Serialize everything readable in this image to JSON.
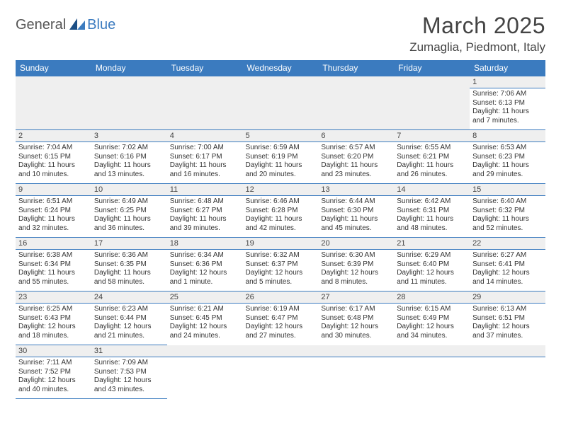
{
  "logo": {
    "part1": "General",
    "part2": "Blue"
  },
  "title": "March 2025",
  "location": "Zumaglia, Piedmont, Italy",
  "colors": {
    "header_bg": "#3b7bbf",
    "header_text": "#ffffff",
    "grid_line": "#3b7bbf",
    "shade": "#efefef",
    "text": "#333333"
  },
  "days_of_week": [
    "Sunday",
    "Monday",
    "Tuesday",
    "Wednesday",
    "Thursday",
    "Friday",
    "Saturday"
  ],
  "weeks": [
    [
      null,
      null,
      null,
      null,
      null,
      null,
      {
        "n": "1",
        "sr": "Sunrise: 7:06 AM",
        "ss": "Sunset: 6:13 PM",
        "dl": "Daylight: 11 hours and 7 minutes."
      }
    ],
    [
      {
        "n": "2",
        "sr": "Sunrise: 7:04 AM",
        "ss": "Sunset: 6:15 PM",
        "dl": "Daylight: 11 hours and 10 minutes."
      },
      {
        "n": "3",
        "sr": "Sunrise: 7:02 AM",
        "ss": "Sunset: 6:16 PM",
        "dl": "Daylight: 11 hours and 13 minutes."
      },
      {
        "n": "4",
        "sr": "Sunrise: 7:00 AM",
        "ss": "Sunset: 6:17 PM",
        "dl": "Daylight: 11 hours and 16 minutes."
      },
      {
        "n": "5",
        "sr": "Sunrise: 6:59 AM",
        "ss": "Sunset: 6:19 PM",
        "dl": "Daylight: 11 hours and 20 minutes."
      },
      {
        "n": "6",
        "sr": "Sunrise: 6:57 AM",
        "ss": "Sunset: 6:20 PM",
        "dl": "Daylight: 11 hours and 23 minutes."
      },
      {
        "n": "7",
        "sr": "Sunrise: 6:55 AM",
        "ss": "Sunset: 6:21 PM",
        "dl": "Daylight: 11 hours and 26 minutes."
      },
      {
        "n": "8",
        "sr": "Sunrise: 6:53 AM",
        "ss": "Sunset: 6:23 PM",
        "dl": "Daylight: 11 hours and 29 minutes."
      }
    ],
    [
      {
        "n": "9",
        "sr": "Sunrise: 6:51 AM",
        "ss": "Sunset: 6:24 PM",
        "dl": "Daylight: 11 hours and 32 minutes."
      },
      {
        "n": "10",
        "sr": "Sunrise: 6:49 AM",
        "ss": "Sunset: 6:25 PM",
        "dl": "Daylight: 11 hours and 36 minutes."
      },
      {
        "n": "11",
        "sr": "Sunrise: 6:48 AM",
        "ss": "Sunset: 6:27 PM",
        "dl": "Daylight: 11 hours and 39 minutes."
      },
      {
        "n": "12",
        "sr": "Sunrise: 6:46 AM",
        "ss": "Sunset: 6:28 PM",
        "dl": "Daylight: 11 hours and 42 minutes."
      },
      {
        "n": "13",
        "sr": "Sunrise: 6:44 AM",
        "ss": "Sunset: 6:30 PM",
        "dl": "Daylight: 11 hours and 45 minutes."
      },
      {
        "n": "14",
        "sr": "Sunrise: 6:42 AM",
        "ss": "Sunset: 6:31 PM",
        "dl": "Daylight: 11 hours and 48 minutes."
      },
      {
        "n": "15",
        "sr": "Sunrise: 6:40 AM",
        "ss": "Sunset: 6:32 PM",
        "dl": "Daylight: 11 hours and 52 minutes."
      }
    ],
    [
      {
        "n": "16",
        "sr": "Sunrise: 6:38 AM",
        "ss": "Sunset: 6:34 PM",
        "dl": "Daylight: 11 hours and 55 minutes."
      },
      {
        "n": "17",
        "sr": "Sunrise: 6:36 AM",
        "ss": "Sunset: 6:35 PM",
        "dl": "Daylight: 11 hours and 58 minutes."
      },
      {
        "n": "18",
        "sr": "Sunrise: 6:34 AM",
        "ss": "Sunset: 6:36 PM",
        "dl": "Daylight: 12 hours and 1 minute."
      },
      {
        "n": "19",
        "sr": "Sunrise: 6:32 AM",
        "ss": "Sunset: 6:37 PM",
        "dl": "Daylight: 12 hours and 5 minutes."
      },
      {
        "n": "20",
        "sr": "Sunrise: 6:30 AM",
        "ss": "Sunset: 6:39 PM",
        "dl": "Daylight: 12 hours and 8 minutes."
      },
      {
        "n": "21",
        "sr": "Sunrise: 6:29 AM",
        "ss": "Sunset: 6:40 PM",
        "dl": "Daylight: 12 hours and 11 minutes."
      },
      {
        "n": "22",
        "sr": "Sunrise: 6:27 AM",
        "ss": "Sunset: 6:41 PM",
        "dl": "Daylight: 12 hours and 14 minutes."
      }
    ],
    [
      {
        "n": "23",
        "sr": "Sunrise: 6:25 AM",
        "ss": "Sunset: 6:43 PM",
        "dl": "Daylight: 12 hours and 18 minutes."
      },
      {
        "n": "24",
        "sr": "Sunrise: 6:23 AM",
        "ss": "Sunset: 6:44 PM",
        "dl": "Daylight: 12 hours and 21 minutes."
      },
      {
        "n": "25",
        "sr": "Sunrise: 6:21 AM",
        "ss": "Sunset: 6:45 PM",
        "dl": "Daylight: 12 hours and 24 minutes."
      },
      {
        "n": "26",
        "sr": "Sunrise: 6:19 AM",
        "ss": "Sunset: 6:47 PM",
        "dl": "Daylight: 12 hours and 27 minutes."
      },
      {
        "n": "27",
        "sr": "Sunrise: 6:17 AM",
        "ss": "Sunset: 6:48 PM",
        "dl": "Daylight: 12 hours and 30 minutes."
      },
      {
        "n": "28",
        "sr": "Sunrise: 6:15 AM",
        "ss": "Sunset: 6:49 PM",
        "dl": "Daylight: 12 hours and 34 minutes."
      },
      {
        "n": "29",
        "sr": "Sunrise: 6:13 AM",
        "ss": "Sunset: 6:51 PM",
        "dl": "Daylight: 12 hours and 37 minutes."
      }
    ],
    [
      {
        "n": "30",
        "sr": "Sunrise: 7:11 AM",
        "ss": "Sunset: 7:52 PM",
        "dl": "Daylight: 12 hours and 40 minutes."
      },
      {
        "n": "31",
        "sr": "Sunrise: 7:09 AM",
        "ss": "Sunset: 7:53 PM",
        "dl": "Daylight: 12 hours and 43 minutes."
      },
      null,
      null,
      null,
      null,
      null
    ]
  ]
}
